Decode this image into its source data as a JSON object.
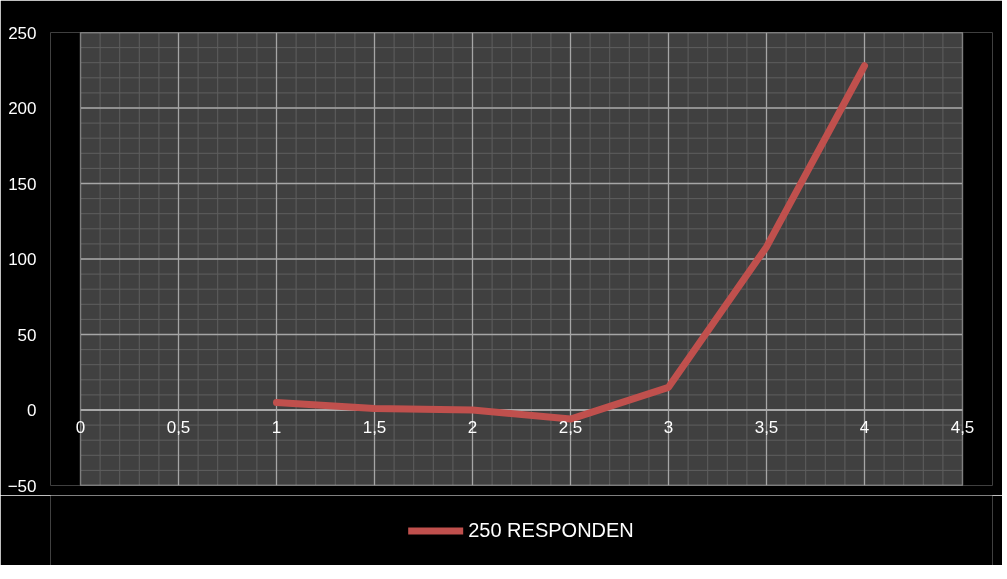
{
  "chart_data": {
    "type": "line",
    "x": [
      1,
      1.5,
      2,
      2.5,
      3,
      3.5,
      4
    ],
    "series": [
      {
        "name": "250 RESPONDEN",
        "color": "#c0504d",
        "values": [
          5,
          1,
          0,
          -6,
          15,
          108,
          228
        ]
      }
    ],
    "xlim": [
      0,
      4.5
    ],
    "xticks": [
      0,
      {
        "value": 0.5,
        "label": "0,5"
      },
      1,
      {
        "value": 1.5,
        "label": "1,5"
      },
      2,
      {
        "value": 2.5,
        "label": "2,5"
      },
      3,
      {
        "value": 3.5,
        "label": "3,5"
      },
      4,
      {
        "value": 4.5,
        "label": "4,5"
      }
    ],
    "ylim": [
      -50,
      250
    ],
    "yticks": [
      -50,
      0,
      50,
      100,
      150,
      200,
      250
    ],
    "grid": true,
    "legend": "bottom",
    "line_style": "solid"
  }
}
